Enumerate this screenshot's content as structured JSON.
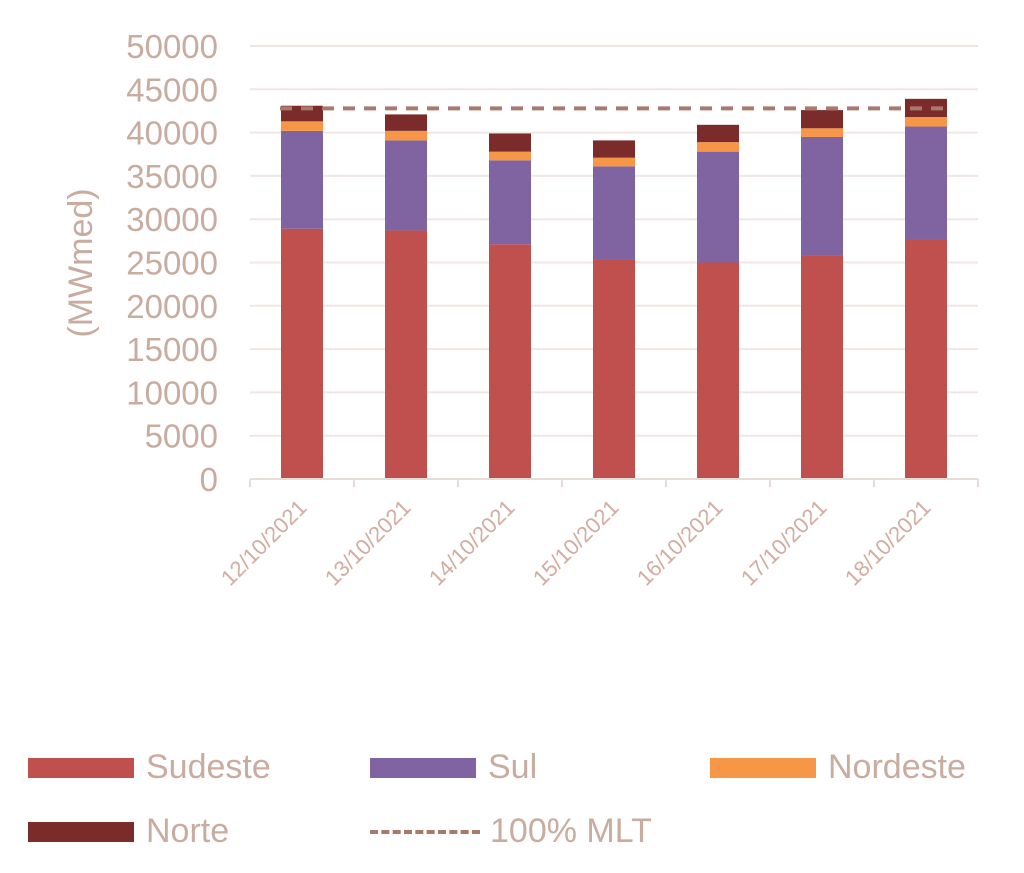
{
  "chart_data": {
    "type": "bar",
    "stacked": true,
    "title": "",
    "xlabel": "",
    "ylabel": "(MWmed)",
    "ylim": [
      0,
      50000
    ],
    "yticks": [
      0,
      5000,
      10000,
      15000,
      20000,
      25000,
      30000,
      35000,
      40000,
      45000,
      50000
    ],
    "grid": true,
    "legend_position": "bottom",
    "categories": [
      "12/10/2021",
      "13/10/2021",
      "14/10/2021",
      "15/10/2021",
      "16/10/2021",
      "17/10/2021",
      "18/10/2021"
    ],
    "series": [
      {
        "name": "Sudeste",
        "color": "#c0504d",
        "values": [
          28900,
          28700,
          27100,
          25400,
          25000,
          25800,
          27600
        ]
      },
      {
        "name": "Sul",
        "color": "#8064a2",
        "values": [
          11300,
          10400,
          9700,
          10700,
          12800,
          13700,
          13100
        ]
      },
      {
        "name": "Nordeste",
        "color": "#f79646",
        "values": [
          1100,
          1100,
          1000,
          1000,
          1100,
          1000,
          1100
        ]
      },
      {
        "name": "Norte",
        "color": "#7b2c2a",
        "values": [
          1800,
          1900,
          2100,
          2000,
          2000,
          2100,
          2100
        ]
      }
    ],
    "reference_line": {
      "name": "100% MLT",
      "value": 42800,
      "color": "#a97a6c",
      "style": "dashed"
    }
  }
}
